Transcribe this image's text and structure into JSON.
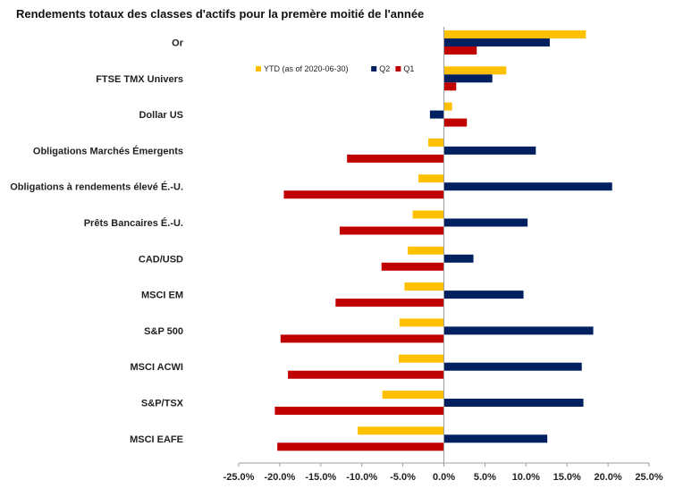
{
  "chart_data": {
    "type": "bar",
    "orientation": "horizontal",
    "title": "Rendements totaux des classes d'actifs pour la premère moitié de l'année",
    "categories": [
      "Or",
      "FTSE TMX Univers",
      "Dollar US",
      "Obligations Marchés Émergents",
      "Obligations à rendements élevé É.-U.",
      "Prêts Bancaires É.-U.",
      "CAD/USD",
      "MSCI EM",
      "S&P 500",
      "MSCI ACWI",
      "S&P/TSX",
      "MSCI EAFE"
    ],
    "series": [
      {
        "name": "YTD (as of 2020-06-30)",
        "color": "#FFC000",
        "values": [
          17.3,
          7.6,
          1.0,
          -1.9,
          -3.1,
          -3.8,
          -4.4,
          -4.8,
          -5.4,
          -5.5,
          -7.5,
          -10.5
        ]
      },
      {
        "name": "Q2",
        "color": "#002060",
        "values": [
          12.9,
          5.9,
          -1.7,
          11.2,
          20.5,
          10.2,
          3.6,
          9.7,
          18.2,
          16.8,
          17.0,
          12.6
        ]
      },
      {
        "name": "Q1",
        "color": "#C00000",
        "values": [
          4.0,
          1.5,
          2.8,
          -11.8,
          -19.5,
          -12.7,
          -7.6,
          -13.2,
          -19.9,
          -19.0,
          -20.6,
          -20.3
        ]
      }
    ],
    "xlim": [
      -25,
      25
    ],
    "xticks": [
      "-25.0%",
      "-20.0%",
      "-15.0%",
      "-10.0%",
      "-5.0%",
      "0.0%",
      "5.0%",
      "10.0%",
      "15.0%",
      "20.0%",
      "25.0%"
    ],
    "xlabel": "",
    "ylabel": "",
    "legend_position": "top-center",
    "grid": false
  }
}
